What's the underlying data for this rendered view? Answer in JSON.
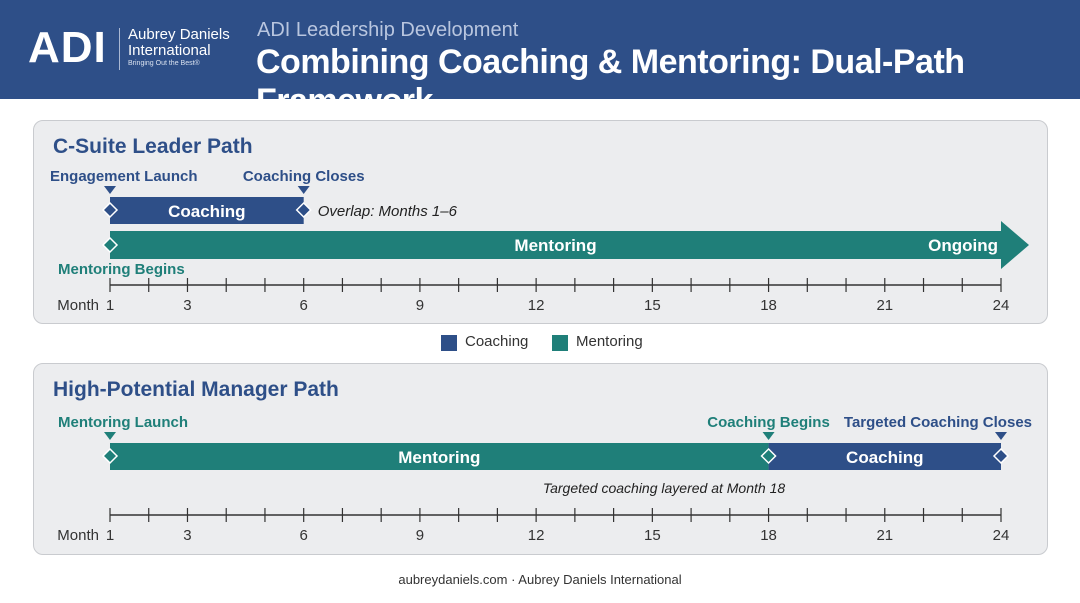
{
  "header": {
    "logo_mark": "ADI",
    "logo_name_line1": "Aubrey Daniels",
    "logo_name_line2": "International",
    "logo_tagline": "Bringing Out the Best®",
    "subtitle": "ADI Leadership Development",
    "title": "Combining Coaching & Mentoring: Dual-Path Framework"
  },
  "colors": {
    "header": "#2e4f88",
    "coaching": "#2e4f88",
    "mentoring": "#1f7f79",
    "mentoring_label": "#1f7f79",
    "marker": "#2e4f88",
    "panel_bg": "#ecedef"
  },
  "timeline": {
    "axis_label": "Month",
    "ticks_labeled": [
      1,
      3,
      6,
      9,
      12,
      15,
      18,
      21,
      24
    ],
    "range": [
      1,
      24
    ]
  },
  "panels": [
    {
      "title": "C-Suite Leader Path",
      "bars": [
        {
          "name": "coaching",
          "label": "Coaching",
          "start": 1,
          "end": 6,
          "arrow": false
        },
        {
          "name": "mentoring",
          "label": "Mentoring",
          "start": 1,
          "end": 24,
          "arrow": true,
          "end_label": "Ongoing"
        }
      ],
      "markers_top": [
        {
          "label": "Engagement Launch",
          "month": 1
        },
        {
          "label": "Coaching Closes",
          "month": 6
        }
      ],
      "marker_bottom": {
        "label": "Mentoring Begins",
        "month": 1
      },
      "note": "Overlap: Months 1–6"
    },
    {
      "title": "High-Potential Manager Path",
      "bars": [
        {
          "name": "mentoring",
          "label": "Mentoring",
          "start": 1,
          "end": 18,
          "arrow": false
        },
        {
          "name": "coaching",
          "label": "Coaching",
          "start": 18,
          "end": 24,
          "arrow": false
        }
      ],
      "markers_top": [
        {
          "label": "Mentoring Launch",
          "month": 1
        },
        {
          "label": "Coaching Begins",
          "month": 18
        },
        {
          "label": "Targeted Coaching Closes",
          "month": 24
        }
      ],
      "note": "Targeted coaching layered at Month 18"
    }
  ],
  "legend": [
    {
      "label": "Coaching",
      "color": "#2e4f88"
    },
    {
      "label": "Mentoring",
      "color": "#1f7f79"
    }
  ],
  "footer": "aubreydaniels.com · Aubrey Daniels International"
}
